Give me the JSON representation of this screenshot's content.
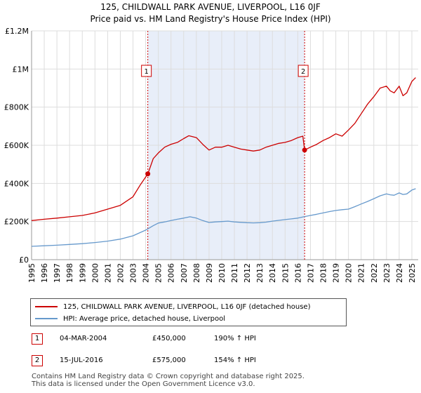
{
  "header": {
    "title_line1": "125, CHILDWALL PARK AVENUE, LIVERPOOL, L16 0JF",
    "title_line2": "Price paid vs. HM Land Registry's House Price Index (HPI)"
  },
  "chart_data": {
    "type": "line",
    "ylim": [
      0,
      1200000
    ],
    "xlim": [
      1995,
      2025.5
    ],
    "y_ticks": [
      {
        "value": 0,
        "label": "£0"
      },
      {
        "value": 200000,
        "label": "£200K"
      },
      {
        "value": 400000,
        "label": "£400K"
      },
      {
        "value": 600000,
        "label": "£600K"
      },
      {
        "value": 800000,
        "label": "£800K"
      },
      {
        "value": 1000000,
        "label": "£1M"
      },
      {
        "value": 1200000,
        "label": "£1.2M"
      }
    ],
    "x_ticks": [
      "1995",
      "1996",
      "1997",
      "1998",
      "1999",
      "2000",
      "2001",
      "2002",
      "2003",
      "2004",
      "2005",
      "2006",
      "2007",
      "2008",
      "2009",
      "2010",
      "2011",
      "2012",
      "2013",
      "2014",
      "2015",
      "2016",
      "2017",
      "2018",
      "2019",
      "2020",
      "2021",
      "2022",
      "2023",
      "2024",
      "2025"
    ],
    "shaded_period": [
      2004.17,
      2016.54
    ],
    "colors": {
      "property": "#cc0000",
      "hpi": "#6699cc",
      "shade": "#e8eef9",
      "grid": "#dddddd"
    },
    "series": [
      {
        "name": "125, CHILDWALL PARK AVENUE, LIVERPOOL, L16 0JF (detached house)",
        "x": [
          1995,
          1996,
          1997,
          1998,
          1999,
          2000,
          2001,
          2002,
          2003,
          2003.6,
          2004.17,
          2004.6,
          2005,
          2005.5,
          2006,
          2006.5,
          2007,
          2007.4,
          2008,
          2008.5,
          2009,
          2009.5,
          2010,
          2010.5,
          2011,
          2011.5,
          2012,
          2012.5,
          2013,
          2013.5,
          2014,
          2014.5,
          2015,
          2015.5,
          2016,
          2016.4,
          2016.54,
          2017,
          2017.5,
          2018,
          2018.5,
          2019,
          2019.5,
          2020,
          2020.5,
          2021,
          2021.5,
          2022,
          2022.5,
          2023,
          2023.3,
          2023.6,
          2024,
          2024.3,
          2024.6,
          2025,
          2025.3
        ],
        "values": [
          205000,
          212000,
          218000,
          225000,
          232000,
          245000,
          265000,
          285000,
          330000,
          395000,
          450000,
          530000,
          560000,
          590000,
          605000,
          615000,
          635000,
          650000,
          640000,
          605000,
          575000,
          590000,
          590000,
          600000,
          590000,
          580000,
          575000,
          570000,
          575000,
          590000,
          600000,
          610000,
          615000,
          625000,
          640000,
          648000,
          575000,
          590000,
          605000,
          625000,
          640000,
          660000,
          648000,
          680000,
          715000,
          765000,
          815000,
          855000,
          900000,
          910000,
          885000,
          875000,
          910000,
          860000,
          875000,
          935000,
          955000
        ]
      },
      {
        "name": "HPI: Average price, detached house, Liverpool",
        "x": [
          1995,
          1996,
          1997,
          1998,
          1999,
          2000,
          2001,
          2002,
          2003,
          2004,
          2004.6,
          2005,
          2005.5,
          2006,
          2006.5,
          2007,
          2007.5,
          2008,
          2008.5,
          2009,
          2009.5,
          2010,
          2010.5,
          2011,
          2011.5,
          2012,
          2012.5,
          2013,
          2013.5,
          2014,
          2014.5,
          2015,
          2015.5,
          2016,
          2016.54,
          2017,
          2017.5,
          2018,
          2018.5,
          2019,
          2019.5,
          2020,
          2020.5,
          2021,
          2021.5,
          2022,
          2022.5,
          2023,
          2023.3,
          2023.6,
          2024,
          2024.3,
          2024.6,
          2025,
          2025.3
        ],
        "values": [
          70000,
          73000,
          76000,
          80000,
          84000,
          90000,
          97000,
          108000,
          125000,
          155000,
          178000,
          192000,
          198000,
          205000,
          212000,
          218000,
          225000,
          218000,
          205000,
          195000,
          198000,
          200000,
          202000,
          198000,
          196000,
          194000,
          193000,
          194000,
          197000,
          202000,
          206000,
          210000,
          214000,
          218000,
          226000,
          232000,
          238000,
          245000,
          252000,
          258000,
          262000,
          265000,
          278000,
          292000,
          305000,
          320000,
          335000,
          345000,
          340000,
          338000,
          350000,
          342000,
          345000,
          365000,
          372000
        ]
      }
    ],
    "markers": [
      {
        "label": "1",
        "x": 2004.17,
        "value": 450000
      },
      {
        "label": "2",
        "x": 2016.54,
        "value": 575000
      }
    ]
  },
  "legend": {
    "property_label": "125, CHILDWALL PARK AVENUE, LIVERPOOL, L16 0JF (detached house)",
    "hpi_label": "HPI: Average price, detached house, Liverpool"
  },
  "transactions": [
    {
      "num": "1",
      "date": "04-MAR-2004",
      "price": "£450,000",
      "hpi": "190% ↑ HPI"
    },
    {
      "num": "2",
      "date": "15-JUL-2016",
      "price": "£575,000",
      "hpi": "154% ↑ HPI"
    }
  ],
  "footer": {
    "line1": "Contains HM Land Registry data © Crown copyright and database right 2025.",
    "line2": "This data is licensed under the Open Government Licence v3.0."
  }
}
